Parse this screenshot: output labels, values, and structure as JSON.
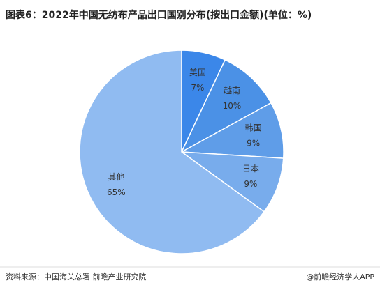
{
  "chart_data": {
    "type": "pie",
    "title": "图表6：2022年中国无纺布产品出口国别分布(按出口金额)(单位：%)",
    "categories": [
      "美国",
      "越南",
      "韩国",
      "日本",
      "其他"
    ],
    "values": [
      7,
      10,
      9,
      9,
      65
    ],
    "value_labels": [
      "7%",
      "10%",
      "9%",
      "9%",
      "65%"
    ],
    "colors": [
      "#3b87e9",
      "#4b91e6",
      "#5f9de8",
      "#78acec",
      "#90bbf1"
    ],
    "source": "资料来源：中国海关总署 前瞻产业研究院",
    "credit": "@前瞻经济学人APP"
  }
}
